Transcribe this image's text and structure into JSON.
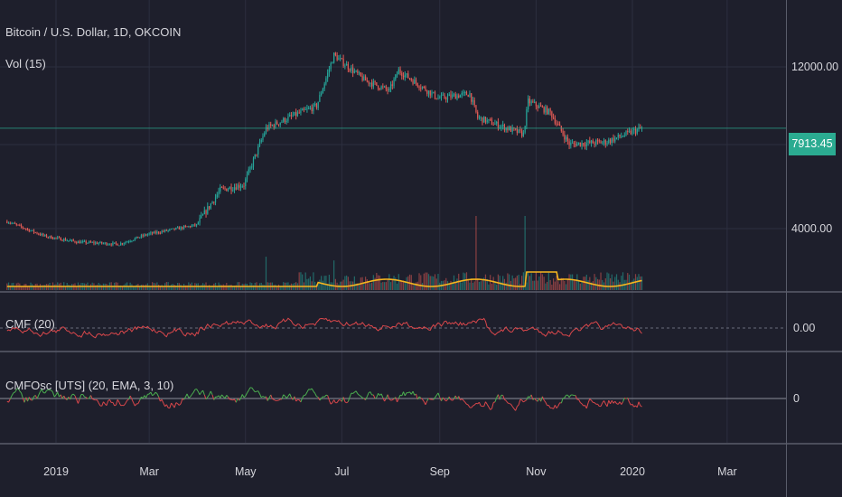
{
  "header": {
    "symbol": "Bitcoin / U.S. Dollar, 1D, OKCOIN",
    "vol_label": "Vol (15)"
  },
  "pane_labels": {
    "cmf": "CMF (20)",
    "cmfosc": "CMFOsc [UTS] (20, EMA, 3, 10)"
  },
  "last_price_label": "7913.45",
  "colors": {
    "background": "#1e1f2c",
    "grid": "#2c2f3f",
    "up": "#26a69a",
    "down": "#e05a55",
    "vol_ma": "#f5b51f",
    "cmf_line": "#d9474b",
    "osc_up": "#4caf50",
    "osc_down": "#d9474b",
    "separator": "#5a5d6b",
    "last_price": "#2bab91",
    "text": "#d6d6dc"
  },
  "chart_data": [
    {
      "type": "candlestick",
      "panel": "price",
      "title": "Bitcoin / U.S. Dollar, 1D, OKCOIN",
      "scale": "log",
      "y_ticks": [
        4000,
        12000
      ],
      "y_tick_labels": [
        "4000.00",
        "12000.00"
      ],
      "last_price": 7913.45,
      "x_ticks": [
        "2019",
        "Mar",
        "May",
        "Jul",
        "Sep",
        "Nov",
        "2020",
        "Mar"
      ],
      "date_range": [
        "2018-12-01",
        "2020-01-07"
      ],
      "monthly_close": [
        {
          "date": "2018-12-01",
          "value": 4200
        },
        {
          "date": "2018-12-25",
          "value": 3800
        },
        {
          "date": "2019-01-15",
          "value": 3650
        },
        {
          "date": "2019-02-10",
          "value": 3600
        },
        {
          "date": "2019-02-28",
          "value": 3850
        },
        {
          "date": "2019-03-31",
          "value": 4100
        },
        {
          "date": "2019-04-15",
          "value": 5200
        },
        {
          "date": "2019-04-30",
          "value": 5400
        },
        {
          "date": "2019-05-14",
          "value": 7900
        },
        {
          "date": "2019-05-31",
          "value": 8600
        },
        {
          "date": "2019-06-15",
          "value": 9200
        },
        {
          "date": "2019-06-26",
          "value": 13000
        },
        {
          "date": "2019-07-15",
          "value": 11000
        },
        {
          "date": "2019-07-31",
          "value": 10200
        },
        {
          "date": "2019-08-06",
          "value": 11700
        },
        {
          "date": "2019-08-31",
          "value": 9700
        },
        {
          "date": "2019-09-20",
          "value": 10000
        },
        {
          "date": "2019-09-25",
          "value": 8500
        },
        {
          "date": "2019-10-24",
          "value": 7600
        },
        {
          "date": "2019-10-27",
          "value": 9500
        },
        {
          "date": "2019-11-10",
          "value": 8800
        },
        {
          "date": "2019-11-22",
          "value": 7100
        },
        {
          "date": "2019-12-15",
          "value": 7200
        },
        {
          "date": "2020-01-07",
          "value": 7913.45
        }
      ]
    },
    {
      "type": "bar",
      "panel": "volume",
      "series": [
        {
          "name": "Vol (15)"
        }
      ],
      "spikes": [
        {
          "date": "2019-05-14",
          "level": 0.45
        },
        {
          "date": "2019-06-26",
          "level": 0.4
        },
        {
          "date": "2019-09-24",
          "level": 1.0
        },
        {
          "date": "2019-10-25",
          "level": 1.0
        }
      ]
    },
    {
      "type": "line",
      "panel": "cmf",
      "series": [
        {
          "name": "CMF (20)"
        }
      ],
      "y_ticks": [
        0
      ],
      "y_tick_labels": [
        "0.00"
      ]
    },
    {
      "type": "area",
      "panel": "cmfosc",
      "series": [
        {
          "name": "CMFOsc [UTS] (20, EMA, 3, 10)"
        }
      ],
      "y_ticks": [
        0
      ],
      "y_tick_labels": [
        "0"
      ]
    }
  ]
}
